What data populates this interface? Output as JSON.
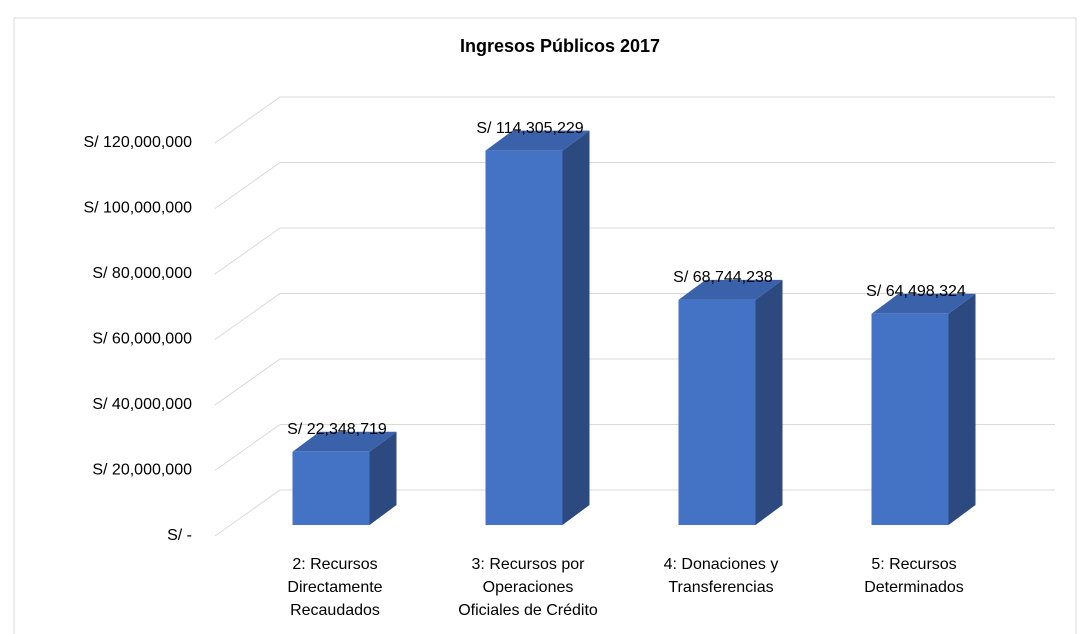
{
  "chart_data": {
    "type": "bar3d",
    "title": "Ingresos Públicos 2017",
    "categories": [
      [
        "2: Recursos",
        "Directamente",
        "Recaudados"
      ],
      [
        "3: Recursos por",
        "Operaciones",
        "Oficiales de Crédito"
      ],
      [
        "4: Donaciones y",
        "Transferencias"
      ],
      [
        "5: Recursos",
        "Determinados"
      ]
    ],
    "values": [
      22348719,
      114305229,
      68744238,
      64498324
    ],
    "value_labels": [
      "S/ 22,348,719",
      "S/ 114,305,229",
      "S/ 68,744,238",
      "S/ 64,498,324"
    ],
    "color": "#4472c4",
    "ylim": [
      0,
      120000000
    ],
    "yticks": [
      {
        "value": 0,
        "label": "S/ -"
      },
      {
        "value": 20000000,
        "label": "S/ 20,000,000"
      },
      {
        "value": 40000000,
        "label": "S/ 40,000,000"
      },
      {
        "value": 60000000,
        "label": "S/ 60,000,000"
      },
      {
        "value": 80000000,
        "label": "S/ 80,000,000"
      },
      {
        "value": 100000000,
        "label": "S/ 100,000,000"
      },
      {
        "value": 120000000,
        "label": "S/ 120,000,000"
      }
    ],
    "grid": true
  }
}
